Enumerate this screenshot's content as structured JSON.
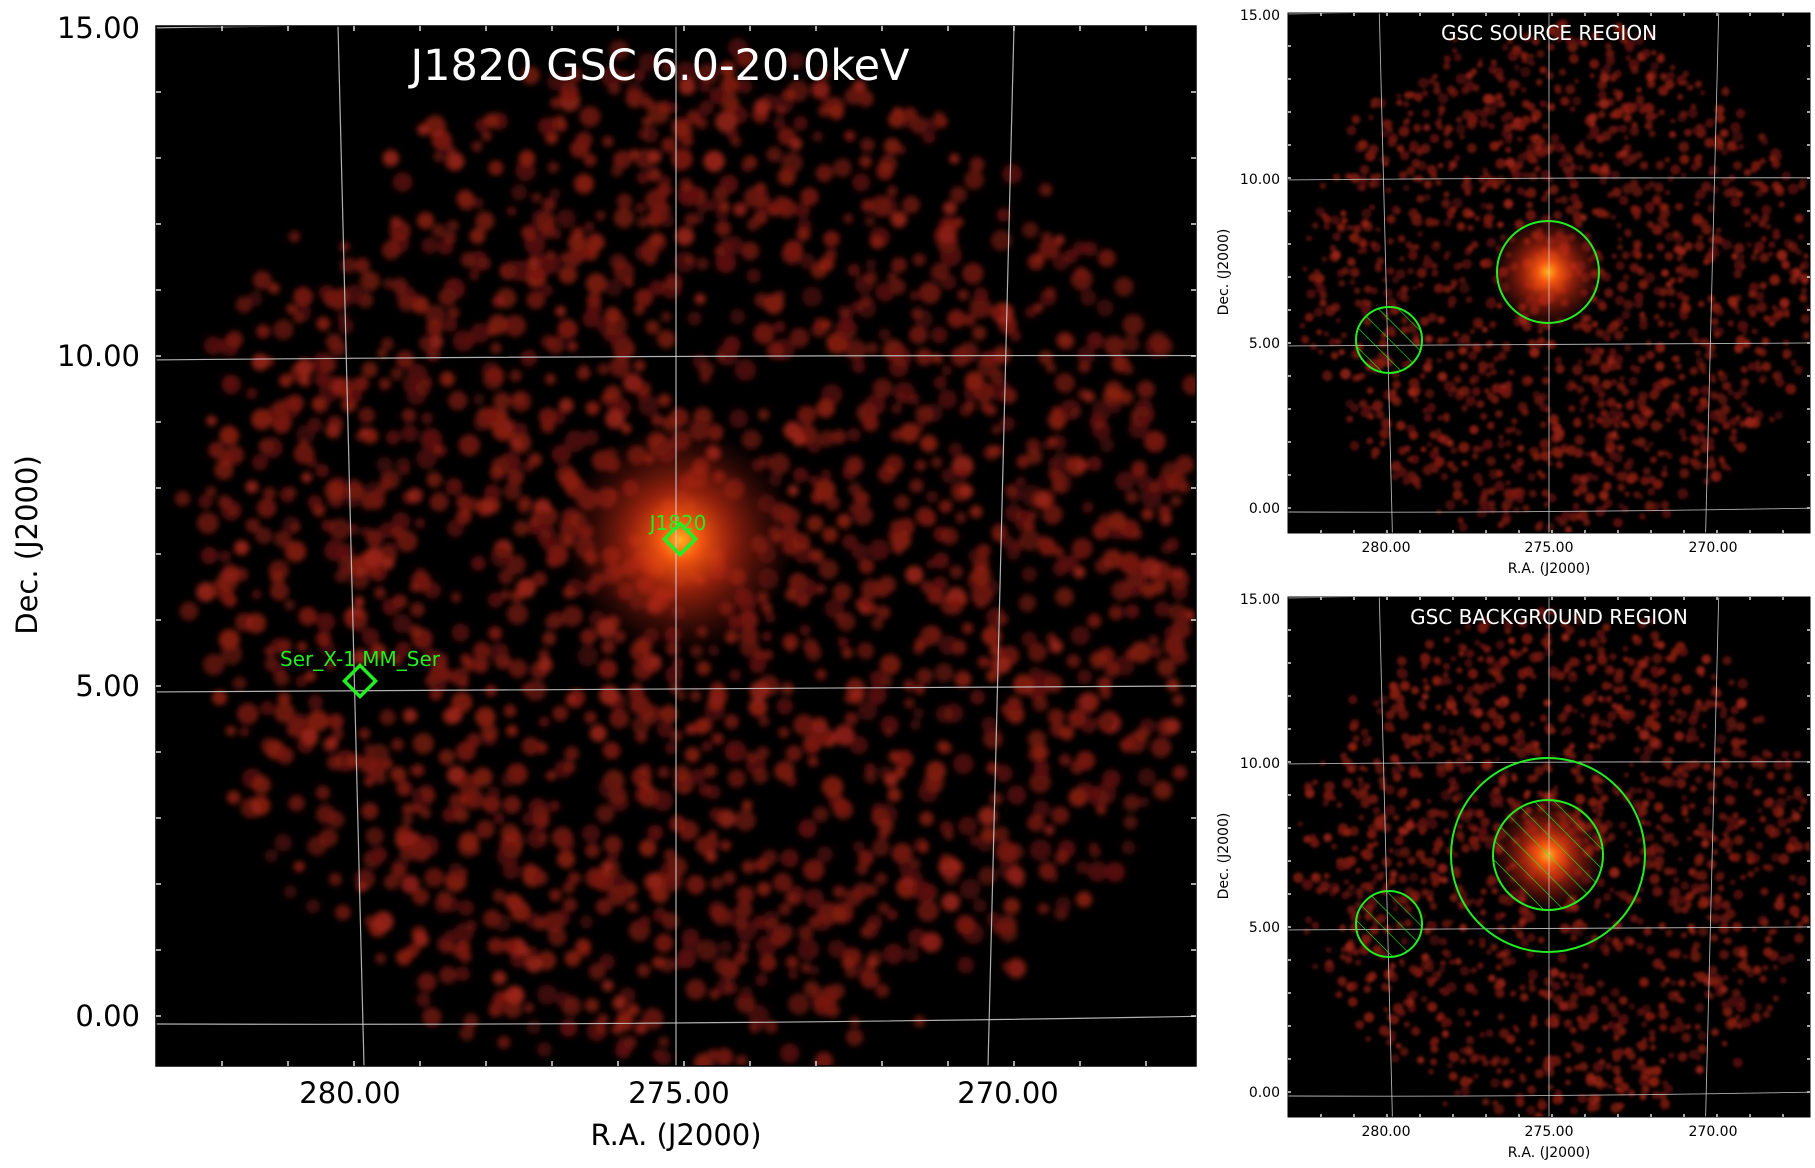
{
  "main": {
    "title": "J1820 GSC 6.0-20.0keV",
    "xlabel": "R.A. (J2000)",
    "ylabel": "Dec. (J2000)",
    "x_ticks": [
      "280.00",
      "275.00",
      "270.00"
    ],
    "y_ticks": [
      "15.00",
      "10.00",
      "5.00",
      "0.00"
    ],
    "sources": [
      {
        "name": "J1820",
        "ra": 275.0,
        "dec": 7.2
      },
      {
        "name": "Ser_X-1 MM_Ser",
        "ra": 279.8,
        "dec": 5.1
      }
    ]
  },
  "source_panel": {
    "title": "GSC SOURCE REGION",
    "xlabel": "R.A. (J2000)",
    "ylabel": "Dec. (J2000)",
    "x_ticks": [
      "280.00",
      "275.00",
      "270.00"
    ],
    "y_ticks": [
      "15.00",
      "10.00",
      "5.00",
      "0.00"
    ]
  },
  "background_panel": {
    "title": "GSC BACKGROUND REGION",
    "xlabel": "R.A. (J2000)",
    "ylabel": "Dec. (J2000)",
    "x_ticks": [
      "280.00",
      "275.00",
      "270.00"
    ],
    "y_ticks": [
      "15.00",
      "10.00",
      "5.00",
      "0.00"
    ]
  },
  "colors": {
    "region": "#22ee22",
    "label": "#22ee22",
    "grid": "#cfcfcf",
    "background": "#000000",
    "emission": "#8a1a10",
    "source_core": "#ff6a10"
  }
}
